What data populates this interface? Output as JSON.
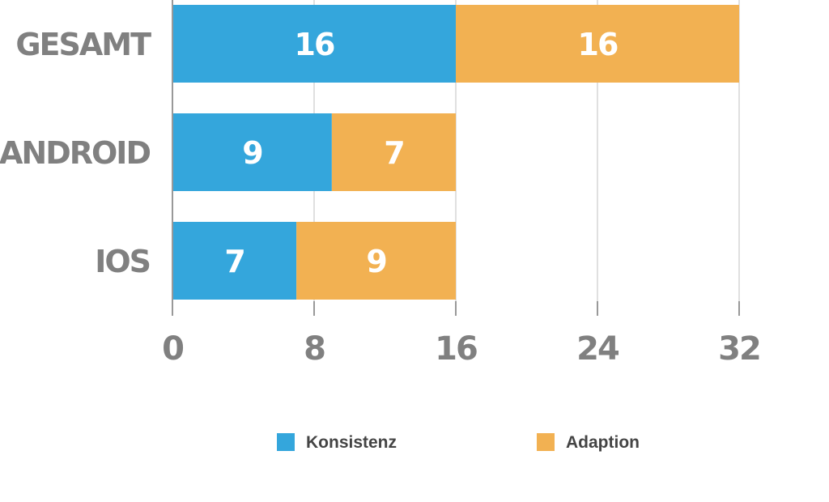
{
  "chart_data": {
    "type": "bar",
    "orientation": "horizontal",
    "stacked": true,
    "categories": [
      "GESAMT",
      "ANDROID",
      "IOS"
    ],
    "series": [
      {
        "name": "Konsistenz",
        "color": "#34A6DC",
        "values": [
          16,
          9,
          7
        ]
      },
      {
        "name": "Adaption",
        "color": "#F2B152",
        "values": [
          16,
          7,
          9
        ]
      }
    ],
    "xlim": [
      0,
      32
    ],
    "xticks": [
      0,
      8,
      16,
      24,
      32
    ],
    "grid": true,
    "legend": "bottom-center"
  }
}
